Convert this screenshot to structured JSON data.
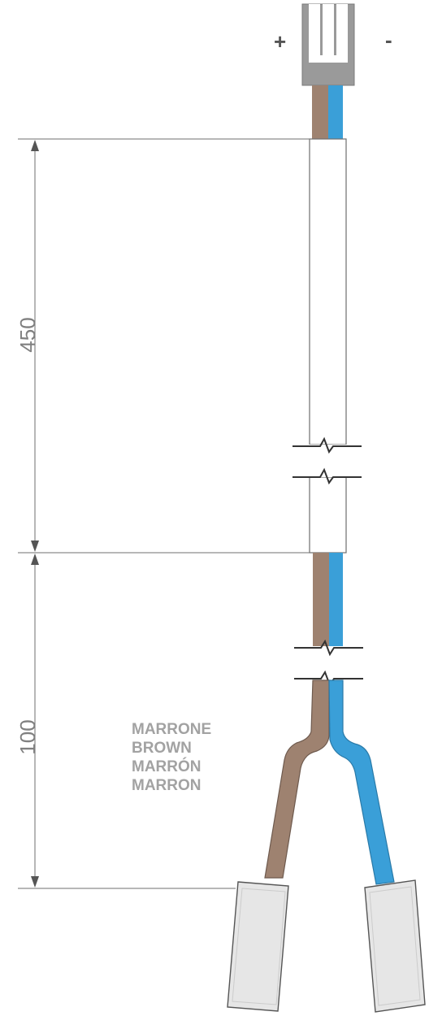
{
  "polarity": {
    "positive": "+",
    "negative": "-"
  },
  "dimensions": {
    "sheath_length": "450",
    "wire_length": "100"
  },
  "wire_label": [
    "MARRONE",
    "BROWN",
    "MARRÓN",
    "MARRON"
  ],
  "colors": {
    "brown_wire": "#9e8270",
    "blue_wire": "#3a9fd8",
    "connector": "#9a9a9a",
    "terminal": "#e6e6e6",
    "sheath": "#ffffff",
    "line": "#6f6f6f"
  }
}
